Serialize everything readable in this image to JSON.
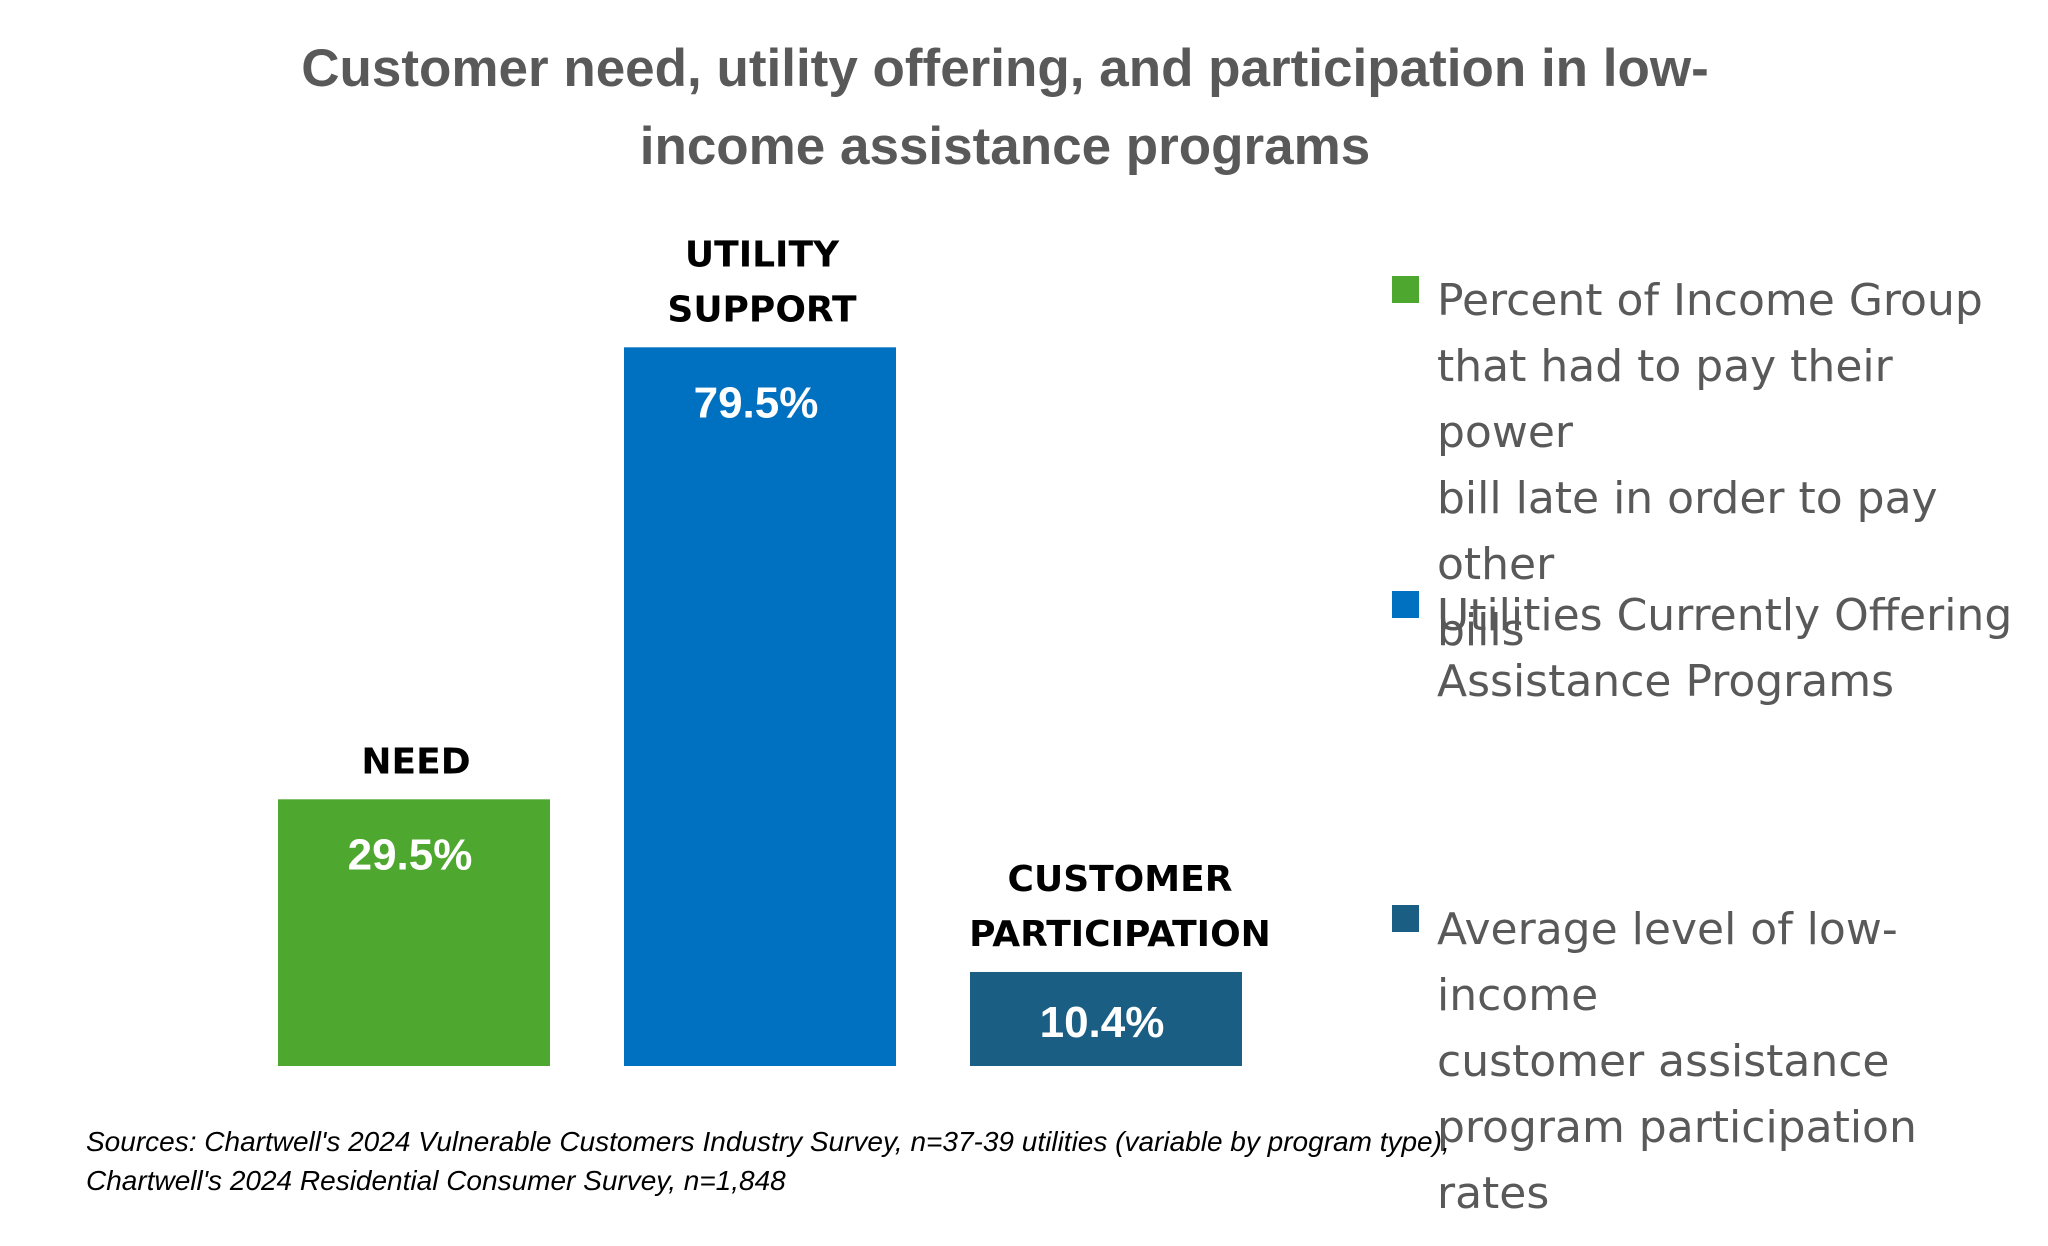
{
  "title": {
    "line1": "Customer need, utility offering, and participation in low-",
    "line2": "income assistance programs"
  },
  "chart_data": {
    "type": "bar",
    "title": "Customer need, utility offering, and participation in low-income assistance programs",
    "categories": [
      "NEED",
      "UTILITY SUPPORT",
      "CUSTOMER PARTICIPATION"
    ],
    "category_lines": [
      [
        "NEED"
      ],
      [
        "UTILITY",
        "SUPPORT"
      ],
      [
        "CUSTOMER",
        "PARTICIPATION"
      ]
    ],
    "values": [
      29.5,
      79.5,
      10.4
    ],
    "value_labels": [
      "29.5%",
      "79.5%",
      "10.4%"
    ],
    "unit": "%",
    "ylim": [
      0,
      100
    ],
    "grid": false,
    "axes_visible": false,
    "colors": [
      "#4EA72E",
      "#0070C0",
      "#1A5E84"
    ],
    "series": [
      {
        "name": "Percent of Income Group that had to pay their power bill late in order to pay other bills",
        "values": [
          29.5,
          null,
          null
        ]
      },
      {
        "name": " Utilities Currently Offering Assistance Programs",
        "values": [
          null,
          79.5,
          null
        ]
      },
      {
        "name": "Average level of low-income customer assistance program participation rates",
        "values": [
          null,
          null,
          10.4
        ]
      }
    ],
    "legend_position": "right"
  },
  "legend": [
    {
      "text": "Percent of Income Group\nthat had to pay their power\nbill late in order to pay other\nbills",
      "color": "#4EA72E"
    },
    {
      "text": " Utilities Currently Offering\nAssistance Programs",
      "color": "#0070C0"
    },
    {
      "text": "Average level of low-income\ncustomer assistance\nprogram participation rates",
      "color": "#1A5E84"
    }
  ],
  "source": {
    "line1": "Sources: Chartwell's 2024 Vulnerable Customers Industry Survey, n=37-39 utilities (variable by program type),",
    "line2": "Chartwell's 2024 Residential Consumer Survey, n=1,848"
  }
}
